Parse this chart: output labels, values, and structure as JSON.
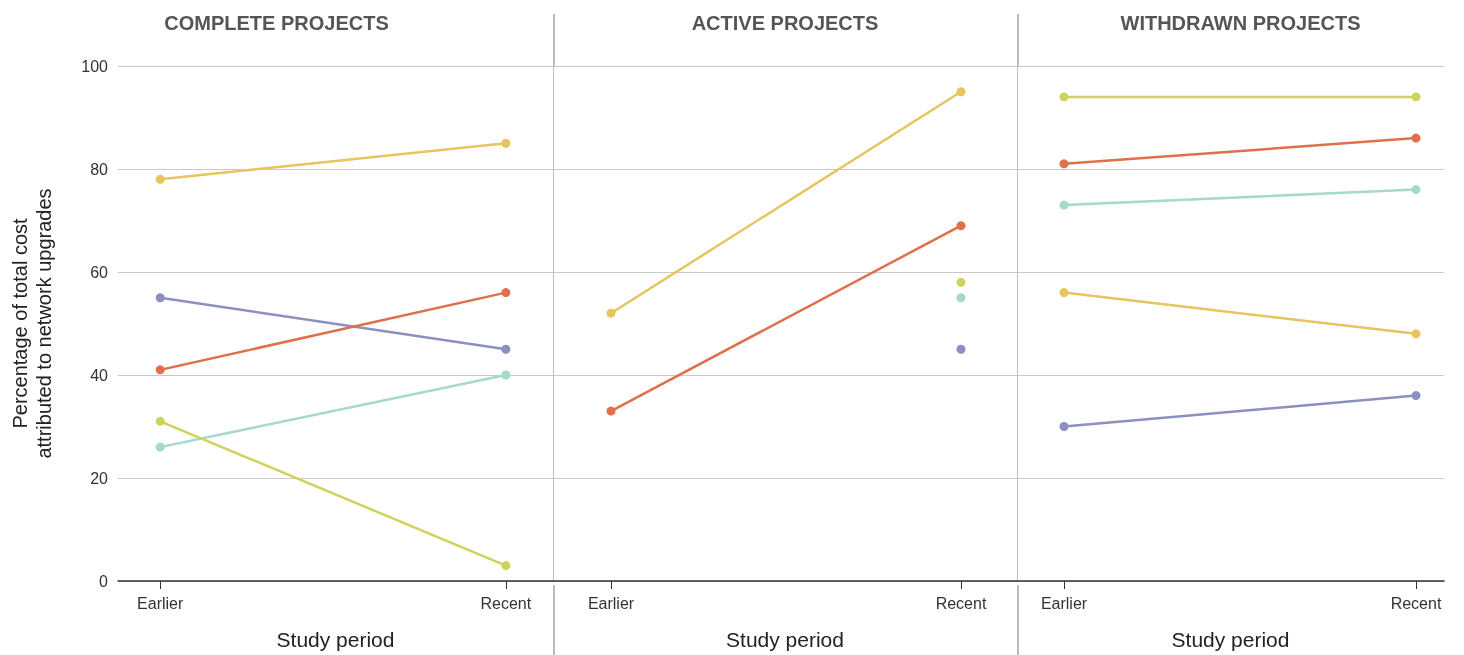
{
  "chart_data": [
    {
      "type": "line",
      "title": "COMPLETE PROJECTS",
      "xlabel": "Study period",
      "ylabel": "Percentage of total cost\nattributed to network upgrades",
      "categories": [
        "Earlier",
        "Recent"
      ],
      "ylim": [
        0,
        100
      ],
      "yticks": [
        0,
        20,
        40,
        60,
        80,
        100
      ],
      "grid": "y",
      "marker": "circle",
      "series": [
        {
          "color": "#e8c45e",
          "values": [
            78,
            85
          ]
        },
        {
          "color": "#8b90bf",
          "values": [
            55,
            45
          ]
        },
        {
          "color": "#e0704a",
          "values": [
            41,
            56
          ]
        },
        {
          "color": "#a6d8cc",
          "values": [
            26,
            40
          ]
        },
        {
          "color": "#cfd35e",
          "values": [
            31,
            3
          ]
        }
      ]
    },
    {
      "type": "line",
      "title": "ACTIVE PROJECTS",
      "xlabel": "Study period",
      "categories": [
        "Earlier",
        "Recent"
      ],
      "ylim": [
        0,
        100
      ],
      "yticks": [
        0,
        20,
        40,
        60,
        80,
        100
      ],
      "grid": "y",
      "marker": "circle",
      "tick_labels": "x",
      "series": [
        {
          "color": "#e8c45e",
          "values": [
            52,
            95
          ]
        },
        {
          "color": "#e0704a",
          "values": [
            33,
            69
          ]
        },
        {
          "color": "#cfd35e",
          "values": [
            null,
            58
          ]
        },
        {
          "color": "#a6d8cc",
          "values": [
            null,
            55
          ]
        },
        {
          "color": "#8b90bf",
          "values": [
            null,
            45
          ]
        }
      ]
    },
    {
      "type": "line",
      "title": "WITHDRAWN PROJECTS",
      "xlabel": "Study period",
      "categories": [
        "Earlier",
        "Recent"
      ],
      "ylim": [
        0,
        100
      ],
      "yticks": [
        0,
        20,
        40,
        60,
        80,
        100
      ],
      "grid": "y",
      "marker": "circle",
      "tick_labels": "x",
      "series": [
        {
          "color": "#cfd35e",
          "values": [
            94,
            94
          ]
        },
        {
          "color": "#e0704a",
          "values": [
            81,
            86
          ]
        },
        {
          "color": "#a6d8cc",
          "values": [
            73,
            76
          ]
        },
        {
          "color": "#e8c45e",
          "values": [
            56,
            48
          ]
        },
        {
          "color": "#8b90bf",
          "values": [
            30,
            36
          ]
        }
      ]
    }
  ]
}
